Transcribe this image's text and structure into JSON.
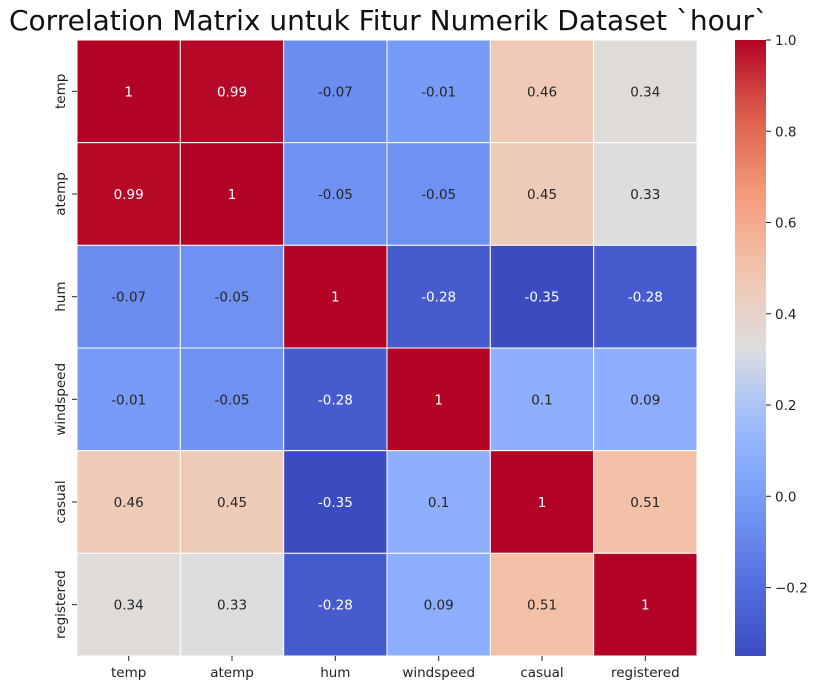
{
  "chart_data": {
    "type": "heatmap",
    "title": "Correlation Matrix untuk Fitur Numerik Dataset `hour`",
    "x_categories": [
      "temp",
      "atemp",
      "hum",
      "windspeed",
      "casual",
      "registered"
    ],
    "y_categories": [
      "temp",
      "atemp",
      "hum",
      "windspeed",
      "casual",
      "registered"
    ],
    "values": [
      [
        1,
        0.99,
        -0.07,
        -0.01,
        0.46,
        0.34
      ],
      [
        0.99,
        1,
        -0.05,
        -0.05,
        0.45,
        0.33
      ],
      [
        -0.07,
        -0.05,
        1,
        -0.28,
        -0.35,
        -0.28
      ],
      [
        -0.01,
        -0.05,
        -0.28,
        1,
        0.1,
        0.09
      ],
      [
        0.46,
        0.45,
        -0.35,
        0.1,
        1,
        0.51
      ],
      [
        0.34,
        0.33,
        -0.28,
        0.09,
        0.51,
        1
      ]
    ],
    "colormap": "coolwarm",
    "colorbar": {
      "range": [
        -0.35,
        1.0
      ],
      "ticks": [
        -0.2,
        0.0,
        0.2,
        0.4,
        0.6,
        0.8,
        1.0
      ],
      "tick_labels": [
        "−0.2",
        "0.0",
        "0.2",
        "0.4",
        "0.6",
        "0.8",
        "1.0"
      ]
    },
    "annotations": true,
    "grid_line_color": "#ffffff"
  }
}
